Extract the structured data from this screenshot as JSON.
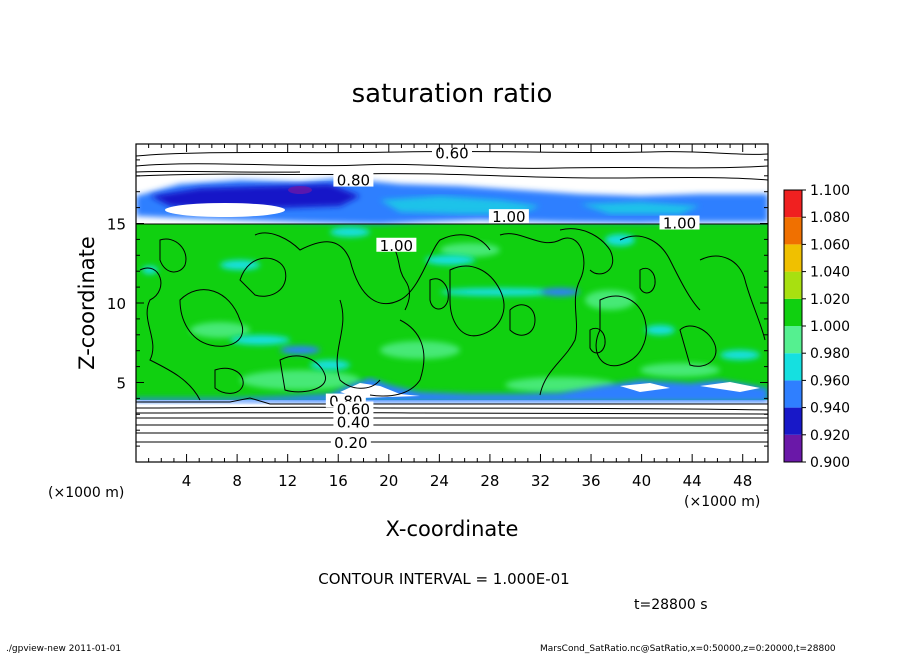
{
  "chart_data": {
    "type": "heatmap",
    "title": "saturation ratio",
    "xlabel": "X-coordinate",
    "ylabel": "Z-coordinate",
    "x_unit_label": "(×1000 m)",
    "y_unit_label": "(×1000 m)",
    "xlim": [
      0,
      50
    ],
    "ylim": [
      0,
      20
    ],
    "x_ticks": [
      4,
      8,
      12,
      16,
      20,
      24,
      28,
      32,
      36,
      40,
      44,
      48
    ],
    "y_ticks": [
      5,
      10,
      15
    ],
    "colorbar": {
      "levels": [
        0.9,
        0.92,
        0.94,
        0.96,
        0.98,
        1.0,
        1.02,
        1.04,
        1.06,
        1.08,
        1.1
      ],
      "labels": [
        "0.900",
        "0.920",
        "0.940",
        "0.960",
        "0.980",
        "1.000",
        "1.020",
        "1.040",
        "1.060",
        "1.080",
        "1.100"
      ],
      "colors": [
        "#6a18a8",
        "#1818c8",
        "#2f7fff",
        "#15e0e0",
        "#55f090",
        "#10d010",
        "#a8e010",
        "#f0c000",
        "#f07000",
        "#f02020",
        "#f08888"
      ]
    },
    "contour_labels": [
      {
        "text": "0.60",
        "x": 25.0,
        "z": 19.4
      },
      {
        "text": "0.80",
        "x": 17.2,
        "z": 17.7
      },
      {
        "text": "1.00",
        "x": 29.5,
        "z": 15.4
      },
      {
        "text": "1.00",
        "x": 43.0,
        "z": 15.0
      },
      {
        "text": "1.00",
        "x": 20.6,
        "z": 13.6
      },
      {
        "text": "0.80",
        "x": 16.6,
        "z": 3.8
      },
      {
        "text": "0.60",
        "x": 17.2,
        "z": 3.3
      },
      {
        "text": "0.40",
        "x": 17.2,
        "z": 2.5
      },
      {
        "text": "0.20",
        "x": 17.0,
        "z": 1.2
      }
    ],
    "footer": {
      "contour_interval": "CONTOUR INTERVAL = 1.000E-01",
      "time": "t=28800 s",
      "left_note": "./gpview-new   2011-01-01",
      "right_note": "MarsCond_SatRatio.nc@SatRatio,x=0:50000,z=0:20000,t=28800"
    }
  },
  "colors": {
    "super": "#10d010",
    "drier": "#55f090",
    "cyan": "#15e0e0",
    "blue": "#2f7fff",
    "dark_blue": "#1818c8",
    "purple": "#6a18a8",
    "contour": "#000000"
  }
}
